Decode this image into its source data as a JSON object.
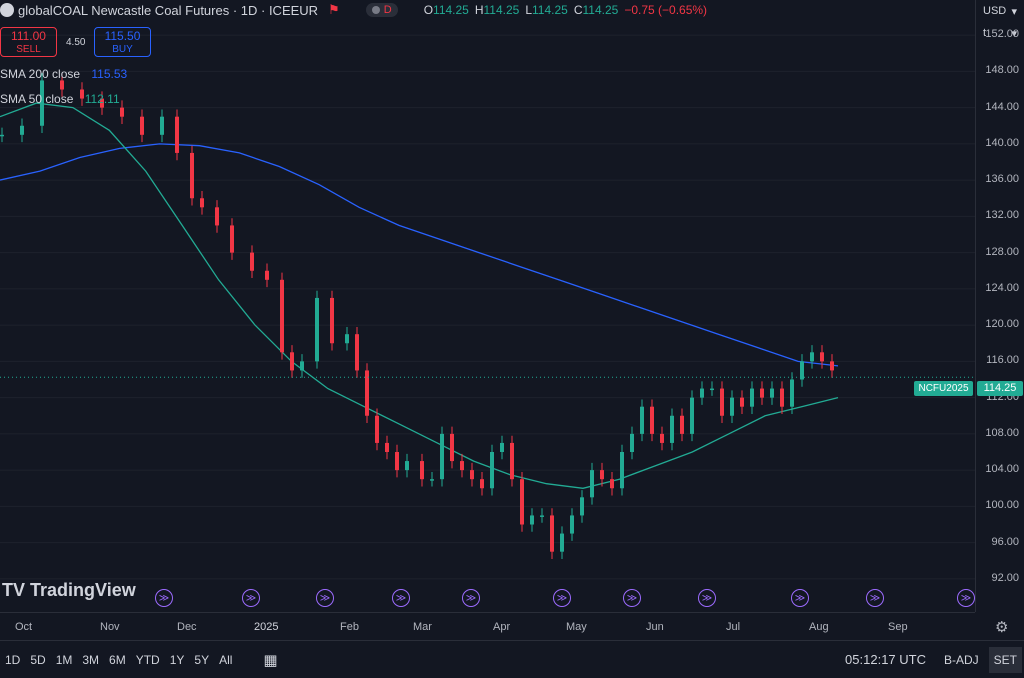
{
  "header": {
    "title": "globalCOAL Newcastle Coal Futures · 1D · ICEEUR",
    "interval_badge": "D",
    "ohlc": {
      "o_label": "O",
      "o": "114.25",
      "h_label": "H",
      "h": "114.25",
      "l_label": "L",
      "l": "114.25",
      "c_label": "C",
      "c": "114.25",
      "change": "−0.75 (−0.65%)"
    }
  },
  "trade": {
    "sell_price": "111.00",
    "sell_label": "SELL",
    "spread": "4.50",
    "buy_price": "115.50",
    "buy_label": "BUY"
  },
  "indicators": [
    {
      "label": "SMA 200 close",
      "value": "115.53",
      "color": "#2962ff"
    },
    {
      "label": "SMA 50 close",
      "value": "112.11",
      "color": "#22ab94"
    }
  ],
  "price_scale": {
    "currency": "USD",
    "unit": "t",
    "ticks": [
      "152.00",
      "148.00",
      "144.00",
      "140.00",
      "136.00",
      "132.00",
      "128.00",
      "124.00",
      "120.00",
      "116.00",
      "112.00",
      "108.00",
      "104.00",
      "100.00",
      "96.00",
      "92.00"
    ],
    "last_price": "114.25",
    "symbol_tag": "NCFU2025"
  },
  "time_axis": {
    "labels": [
      "Oct",
      "Nov",
      "Dec",
      "2025",
      "Feb",
      "Mar",
      "Apr",
      "May",
      "Jun",
      "Jul",
      "Aug",
      "Sep"
    ]
  },
  "bottom_bar": {
    "ranges": [
      "1D",
      "5D",
      "1M",
      "3M",
      "6M",
      "YTD",
      "1Y",
      "5Y",
      "All"
    ],
    "clock": "05:12:17 UTC",
    "badj": "B-ADJ",
    "set": "SET"
  },
  "logo_text": "TradingView",
  "colors": {
    "up": "#22ab94",
    "down": "#f23645",
    "bg": "#131722",
    "sma200": "#2962ff",
    "sma50": "#22ab94",
    "event": "#9c6bff"
  },
  "chart_data": {
    "type": "candlestick",
    "ylim": [
      90,
      154
    ],
    "x": [
      "Oct",
      "Nov",
      "Dec",
      "2025",
      "Feb",
      "Mar",
      "Apr",
      "May",
      "Jun",
      "Jul",
      "Aug",
      "Sep"
    ],
    "sma200": [
      136,
      137,
      138.5,
      139.5,
      140,
      139.8,
      139,
      137.5,
      135.5,
      133,
      131,
      129.5,
      128,
      126.5,
      125,
      123.5,
      122,
      120.5,
      119,
      117.5,
      116,
      115.5
    ],
    "sma50": [
      143,
      144.5,
      144,
      141.5,
      137,
      131,
      125,
      120,
      116,
      113,
      111,
      109,
      107,
      105,
      103.5,
      102.5,
      102,
      103,
      104.5,
      106,
      108,
      110,
      111,
      112
    ],
    "last_price": 114.25
  }
}
